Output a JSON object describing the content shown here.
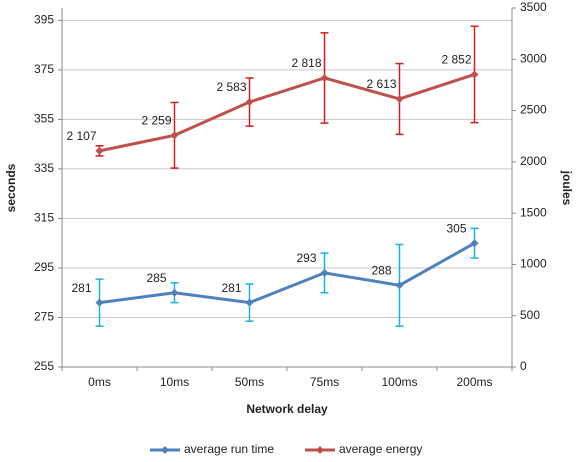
{
  "chart_data": {
    "type": "line",
    "categories": [
      "0ms",
      "10ms",
      "50ms",
      "75ms",
      "100ms",
      "200ms"
    ],
    "xlabel": "Network delay",
    "ylabel": "seconds",
    "y2label": "joules",
    "ylim": [
      255,
      400
    ],
    "yticks": [
      255,
      275,
      295,
      315,
      335,
      355,
      375,
      395
    ],
    "y2lim": [
      0,
      3500
    ],
    "y2ticks": [
      0,
      500,
      1000,
      1500,
      2000,
      2500,
      3000,
      3500
    ],
    "grid": true,
    "legend": "bottom",
    "series": [
      {
        "name": "average run time",
        "color": "#4f81bd",
        "error_color": "#1ab0e0",
        "values": [
          281,
          285,
          281,
          293,
          288,
          305
        ],
        "errors": [
          9.5,
          4,
          7.5,
          8,
          16.5,
          6
        ]
      },
      {
        "name": "average energy",
        "color": "#c0504d",
        "error_color": "#d0201e",
        "axis": "y2",
        "values": [
          2107,
          2259,
          2583,
          2818,
          2613,
          2852
        ],
        "value_labels": [
          "2 107",
          "2 259",
          "2 583",
          "2 818",
          "2 613",
          "2 852"
        ],
        "errors": [
          50,
          320,
          235,
          440,
          345,
          470
        ]
      }
    ]
  }
}
